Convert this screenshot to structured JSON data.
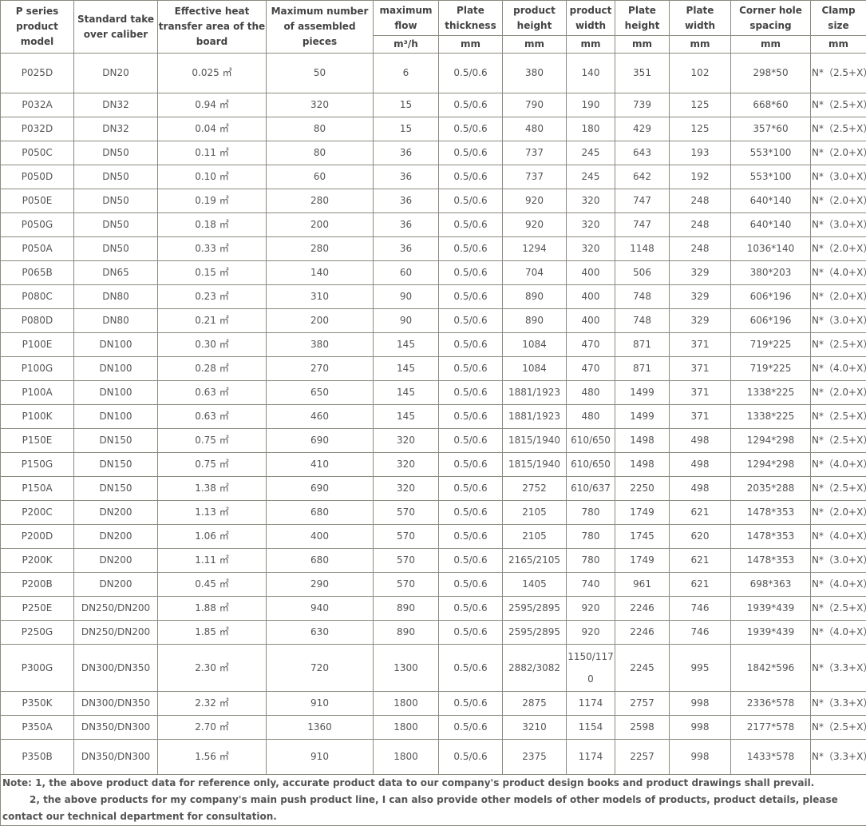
{
  "header": {
    "columns": [
      "P series product model",
      "Standard take over caliber",
      "Effective heat transfer area of the board",
      "Maximum number of assembled pieces",
      "maximum flow",
      "Plate thickness",
      "product height",
      "product width",
      "Plate height",
      "Plate width",
      "Corner hole spacing",
      "Clamp size"
    ],
    "units": [
      "m³/h",
      "mm",
      "mm",
      "mm",
      "mm",
      "mm",
      "mm",
      "mm"
    ]
  },
  "rows": [
    [
      "P025D",
      "DN20",
      "0.025 ㎡",
      "50",
      "6",
      "0.5/0.6",
      "380",
      "140",
      "351",
      "102",
      "298*50",
      "N*（2.5+X）"
    ],
    [
      "P032A",
      "DN32",
      "0.94 ㎡",
      "320",
      "15",
      "0.5/0.6",
      "790",
      "190",
      "739",
      "125",
      "668*60",
      "N*（2.5+X）"
    ],
    [
      "P032D",
      "DN32",
      "0.04 ㎡",
      "80",
      "15",
      "0.5/0.6",
      "480",
      "180",
      "429",
      "125",
      "357*60",
      "N*（2.5+X）"
    ],
    [
      "P050C",
      "DN50",
      "0.11 ㎡",
      "80",
      "36",
      "0.5/0.6",
      "737",
      "245",
      "643",
      "193",
      "553*100",
      "N*（2.0+X）"
    ],
    [
      "P050D",
      "DN50",
      "0.10 ㎡",
      "60",
      "36",
      "0.5/0.6",
      "737",
      "245",
      "642",
      "192",
      "553*100",
      "N*（3.0+X）"
    ],
    [
      "P050E",
      "DN50",
      "0.19 ㎡",
      "280",
      "36",
      "0.5/0.6",
      "920",
      "320",
      "747",
      "248",
      "640*140",
      "N*（2.0+X）"
    ],
    [
      "P050G",
      "DN50",
      "0.18 ㎡",
      "200",
      "36",
      "0.5/0.6",
      "920",
      "320",
      "747",
      "248",
      "640*140",
      "N*（3.0+X）"
    ],
    [
      "P050A",
      "DN50",
      "0.33 ㎡",
      "280",
      "36",
      "0.5/0.6",
      "1294",
      "320",
      "1148",
      "248",
      "1036*140",
      "N*（2.0+X）"
    ],
    [
      "P065B",
      "DN65",
      "0.15 ㎡",
      "140",
      "60",
      "0.5/0.6",
      "704",
      "400",
      "506",
      "329",
      "380*203",
      "N*（4.0+X）"
    ],
    [
      "P080C",
      "DN80",
      "0.23 ㎡",
      "310",
      "90",
      "0.5/0.6",
      "890",
      "400",
      "748",
      "329",
      "606*196",
      "N*（2.0+X）"
    ],
    [
      "P080D",
      "DN80",
      "0.21 ㎡",
      "200",
      "90",
      "0.5/0.6",
      "890",
      "400",
      "748",
      "329",
      "606*196",
      "N*（3.0+X）"
    ],
    [
      "P100E",
      "DN100",
      "0.30 ㎡",
      "380",
      "145",
      "0.5/0.6",
      "1084",
      "470",
      "871",
      "371",
      "719*225",
      "N*（2.5+X）"
    ],
    [
      "P100G",
      "DN100",
      "0.28 ㎡",
      "270",
      "145",
      "0.5/0.6",
      "1084",
      "470",
      "871",
      "371",
      "719*225",
      "N*（4.0+X）"
    ],
    [
      "P100A",
      "DN100",
      "0.63 ㎡",
      "650",
      "145",
      "0.5/0.6",
      "1881/1923",
      "480",
      "1499",
      "371",
      "1338*225",
      "N*（2.0+X）"
    ],
    [
      "P100K",
      "DN100",
      "0.63 ㎡",
      "460",
      "145",
      "0.5/0.6",
      "1881/1923",
      "480",
      "1499",
      "371",
      "1338*225",
      "N*（2.5+X）"
    ],
    [
      "P150E",
      "DN150",
      "0.75 ㎡",
      "690",
      "320",
      "0.5/0.6",
      "1815/1940",
      "610/650",
      "1498",
      "498",
      "1294*298",
      "N*（2.5+X）"
    ],
    [
      "P150G",
      "DN150",
      "0.75 ㎡",
      "410",
      "320",
      "0.5/0.6",
      "1815/1940",
      "610/650",
      "1498",
      "498",
      "1294*298",
      "N*（4.0+X）"
    ],
    [
      "P150A",
      "DN150",
      "1.38 ㎡",
      "690",
      "320",
      "0.5/0.6",
      "2752",
      "610/637",
      "2250",
      "498",
      "2035*288",
      "N*（2.5+X）"
    ],
    [
      "P200C",
      "DN200",
      "1.13 ㎡",
      "680",
      "570",
      "0.5/0.6",
      "2105",
      "780",
      "1749",
      "621",
      "1478*353",
      "N*（2.0+X）"
    ],
    [
      "P200D",
      "DN200",
      "1.06 ㎡",
      "400",
      "570",
      "0.5/0.6",
      "2105",
      "780",
      "1745",
      "620",
      "1478*353",
      "N*（4.0+X）"
    ],
    [
      "P200K",
      "DN200",
      "1.11 ㎡",
      "680",
      "570",
      "0.5/0.6",
      "2165/2105",
      "780",
      "1749",
      "621",
      "1478*353",
      "N*（3.0+X）"
    ],
    [
      "P200B",
      "DN200",
      "0.45 ㎡",
      "290",
      "570",
      "0.5/0.6",
      "1405",
      "740",
      "961",
      "621",
      "698*363",
      "N*（4.0+X）"
    ],
    [
      "P250E",
      "DN250/DN200",
      "1.88 ㎡",
      "940",
      "890",
      "0.5/0.6",
      "2595/2895",
      "920",
      "2246",
      "746",
      "1939*439",
      "N*（2.5+X）"
    ],
    [
      "P250G",
      "DN250/DN200",
      "1.85 ㎡",
      "630",
      "890",
      "0.5/0.6",
      "2595/2895",
      "920",
      "2246",
      "746",
      "1939*439",
      "N*（4.0+X）"
    ],
    [
      "P300G",
      "DN300/DN350",
      "2.30 ㎡",
      "720",
      "1300",
      "0.5/0.6",
      "2882/3082",
      "1150/1170",
      "2245",
      "995",
      "1842*596",
      "N*（3.3+X）"
    ],
    [
      "P350K",
      "DN300/DN350",
      "2.32 ㎡",
      "910",
      "1800",
      "0.5/0.6",
      "2875",
      "1174",
      "2757",
      "998",
      "2336*578",
      "N*（3.3+X）"
    ],
    [
      "P350A",
      "DN350/DN300",
      "2.70 ㎡",
      "1360",
      "1800",
      "0.5/0.6",
      "3210",
      "1154",
      "2598",
      "998",
      "2177*578",
      "N*（2.5+X）"
    ],
    [
      "P350B",
      "DN350/DN300",
      "1.56 ㎡",
      "910",
      "1800",
      "0.5/0.6",
      "2375",
      "1174",
      "2257",
      "998",
      "1433*578",
      "N*（3.3+X）"
    ]
  ],
  "notes": {
    "line1": "Note: 1, the above product data for reference only, accurate product data to our company's product design books and product drawings shall prevail.",
    "line2": "2, the above products for my company's main push product line, I can also provide other models of other models of products, product details, please contact our technical department for consultation."
  }
}
